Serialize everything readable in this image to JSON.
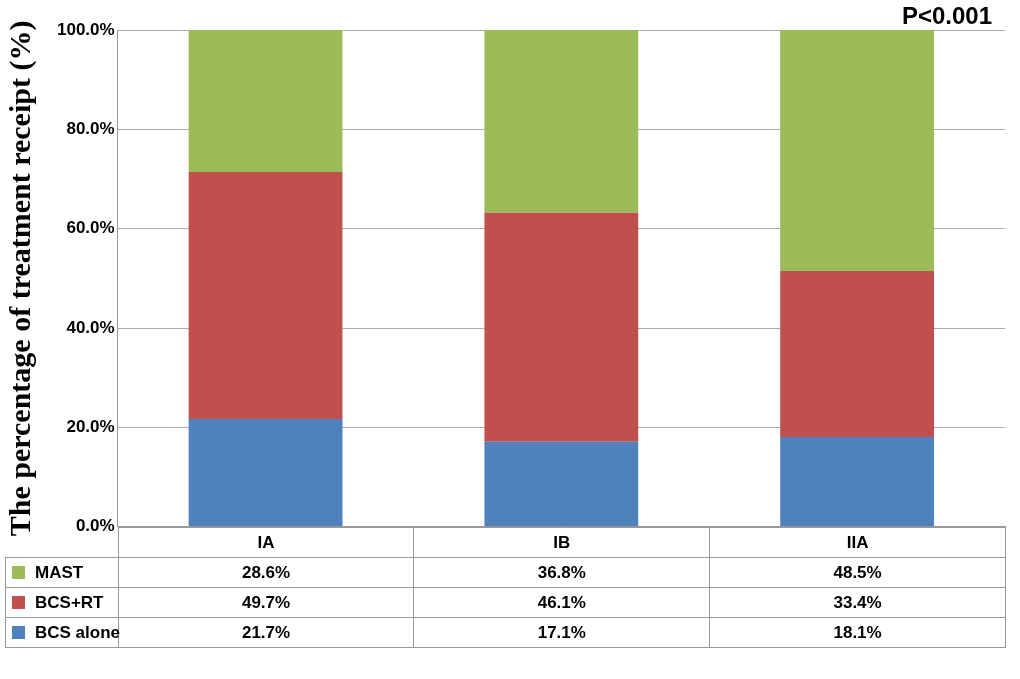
{
  "chart_data": {
    "type": "bar",
    "y_label": "The percentage of treatment receipt (%)",
    "annotations": [
      "P<0.001"
    ],
    "categories": [
      "IA",
      "IB",
      "IIA"
    ],
    "series": [
      {
        "name": "BCS alone",
        "color": "#4f81bd",
        "values": [
          21.7,
          17.1,
          18.1
        ],
        "value_labels": [
          "21.7%",
          "17.1%",
          "18.1%"
        ]
      },
      {
        "name": "BCS+RT",
        "color": "#c0504d",
        "values": [
          49.7,
          46.1,
          33.4
        ],
        "value_labels": [
          "49.7%",
          "46.1%",
          "33.4%"
        ]
      },
      {
        "name": "MAST",
        "color": "#9bbb59",
        "values": [
          28.6,
          36.8,
          48.5
        ],
        "value_labels": [
          "28.6%",
          "36.8%",
          "48.5%"
        ]
      }
    ],
    "stacked": true,
    "grid": true,
    "ylim": [
      0,
      100
    ],
    "yticks": [
      {
        "value": 0,
        "label": "0.0%"
      },
      {
        "value": 20,
        "label": "20.0%"
      },
      {
        "value": 40,
        "label": "40.0%"
      },
      {
        "value": 60,
        "label": "60.0%"
      },
      {
        "value": 80,
        "label": "80.0%"
      },
      {
        "value": 100,
        "label": "100.0%"
      }
    ]
  }
}
